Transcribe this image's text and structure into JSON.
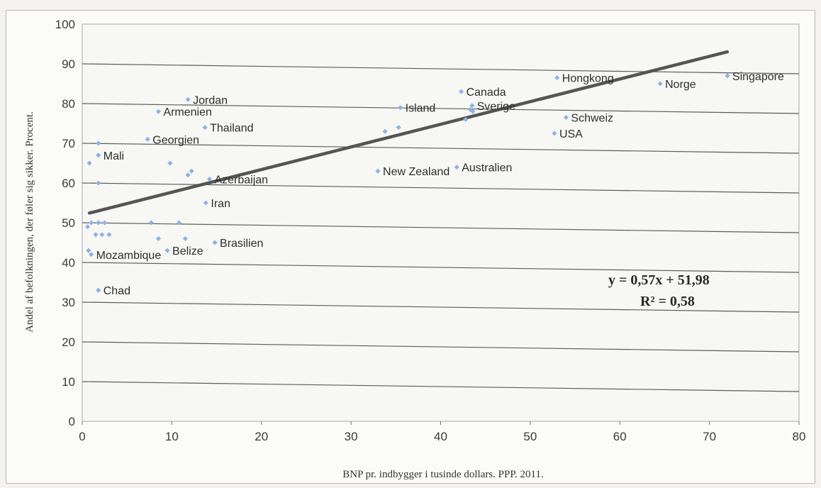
{
  "chart_data": {
    "type": "scatter",
    "title": "",
    "xlabel": "BNP pr. indbygger i tusinde dollars. PPP. 2011.",
    "ylabel": "Andel af befolkningen, der føler sig sikker. Procent.",
    "xlim": [
      0,
      80
    ],
    "ylim": [
      0,
      100
    ],
    "x_ticks": [
      0,
      10,
      20,
      30,
      40,
      50,
      60,
      70,
      80
    ],
    "y_ticks": [
      0,
      10,
      20,
      30,
      40,
      50,
      60,
      70,
      80,
      90,
      100
    ],
    "grid": "horizontal",
    "point_color": "#8fb0e8",
    "trendline": {
      "slope": 0.57,
      "intercept": 51.98,
      "x_range": [
        0.8,
        72
      ],
      "color": "#555555",
      "equation": "y = 0,57x + 51,98",
      "r_squared": "R² = 0,58"
    },
    "points": [
      {
        "x": 72.0,
        "y": 87,
        "label": "Singapore"
      },
      {
        "x": 53.0,
        "y": 86.5,
        "label": "Hongkong"
      },
      {
        "x": 64.5,
        "y": 85,
        "label": "Norge"
      },
      {
        "x": 42.3,
        "y": 83,
        "label": "Canada"
      },
      {
        "x": 43.5,
        "y": 79.5,
        "label": "Sverige"
      },
      {
        "x": 35.5,
        "y": 79,
        "label": "Island"
      },
      {
        "x": 54.0,
        "y": 76.5,
        "label": "Schweiz"
      },
      {
        "x": 52.7,
        "y": 72.5,
        "label": "USA"
      },
      {
        "x": 41.8,
        "y": 64,
        "label": "Australien"
      },
      {
        "x": 33.0,
        "y": 63,
        "label": "New Zealand"
      },
      {
        "x": 11.8,
        "y": 81,
        "label": "Jordan"
      },
      {
        "x": 8.5,
        "y": 78,
        "label": "Armenien"
      },
      {
        "x": 13.7,
        "y": 74,
        "label": "Thailand"
      },
      {
        "x": 7.3,
        "y": 71,
        "label": "Georgien"
      },
      {
        "x": 1.8,
        "y": 67,
        "label": "Mali"
      },
      {
        "x": 14.2,
        "y": 61,
        "label": "Azerbaijan"
      },
      {
        "x": 13.8,
        "y": 55,
        "label": "Iran"
      },
      {
        "x": 14.8,
        "y": 45,
        "label": "Brasilien"
      },
      {
        "x": 9.5,
        "y": 43,
        "label": "Belize"
      },
      {
        "x": 1.0,
        "y": 42,
        "label": "Mozambique"
      },
      {
        "x": 1.8,
        "y": 33,
        "label": "Chad"
      },
      {
        "x": 43.3,
        "y": 78.5,
        "label": ""
      },
      {
        "x": 43.6,
        "y": 78,
        "label": ""
      },
      {
        "x": 42.8,
        "y": 76,
        "label": ""
      },
      {
        "x": 35.3,
        "y": 74,
        "label": ""
      },
      {
        "x": 33.8,
        "y": 73,
        "label": ""
      },
      {
        "x": 0.8,
        "y": 65,
        "label": ""
      },
      {
        "x": 1.8,
        "y": 70,
        "label": ""
      },
      {
        "x": 1.8,
        "y": 60,
        "label": ""
      },
      {
        "x": 9.8,
        "y": 65,
        "label": ""
      },
      {
        "x": 11.8,
        "y": 62,
        "label": ""
      },
      {
        "x": 12.2,
        "y": 63,
        "label": ""
      },
      {
        "x": 0.6,
        "y": 49,
        "label": ""
      },
      {
        "x": 1.0,
        "y": 50,
        "label": ""
      },
      {
        "x": 1.5,
        "y": 47,
        "label": ""
      },
      {
        "x": 1.8,
        "y": 50,
        "label": ""
      },
      {
        "x": 2.2,
        "y": 47,
        "label": ""
      },
      {
        "x": 2.5,
        "y": 50,
        "label": ""
      },
      {
        "x": 3.0,
        "y": 47,
        "label": ""
      },
      {
        "x": 7.7,
        "y": 50,
        "label": ""
      },
      {
        "x": 8.5,
        "y": 46,
        "label": ""
      },
      {
        "x": 10.8,
        "y": 50,
        "label": ""
      },
      {
        "x": 11.5,
        "y": 46,
        "label": ""
      },
      {
        "x": 0.7,
        "y": 43,
        "label": ""
      }
    ]
  }
}
